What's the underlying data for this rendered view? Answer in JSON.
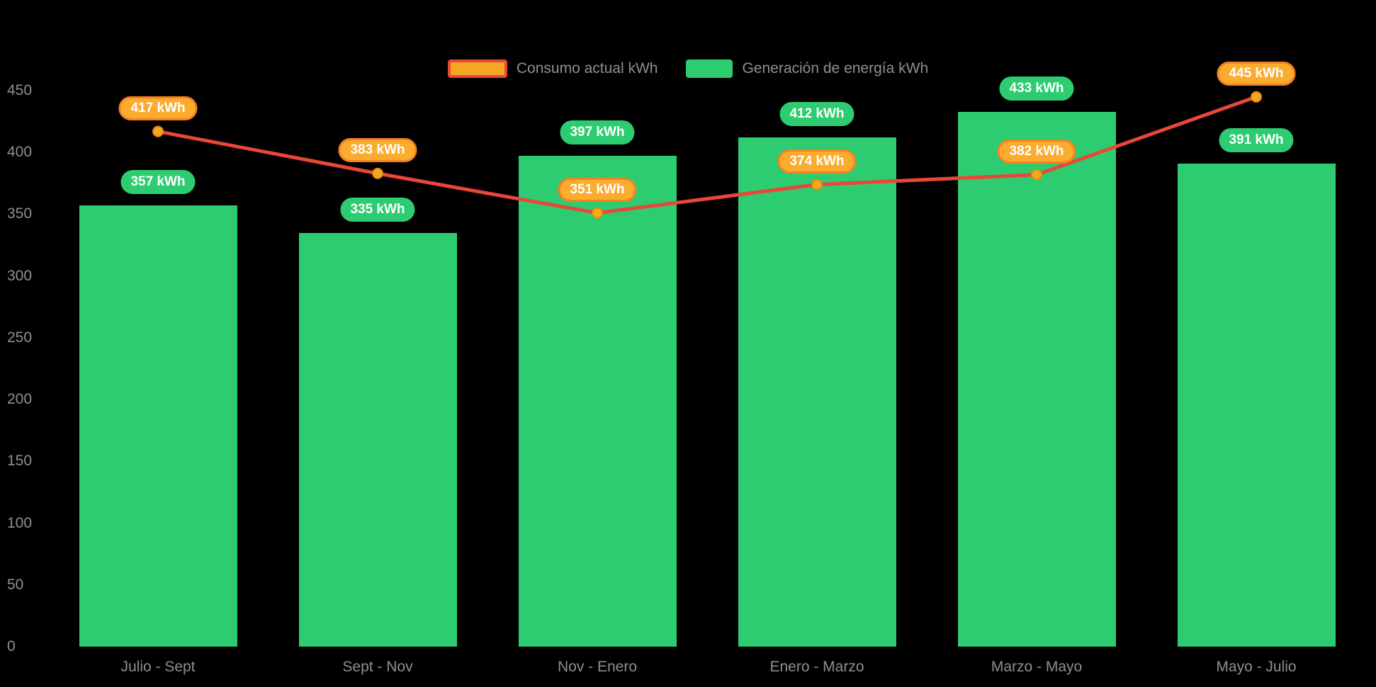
{
  "legend": {
    "items": [
      {
        "label": "Consumo actual kWh"
      },
      {
        "label": "Generación de energía kWh"
      }
    ]
  },
  "chart_data": {
    "type": "bar+line",
    "categories": [
      "Julio - Sept",
      "Sept - Nov",
      "Nov - Enero",
      "Enero - Marzo",
      "Marzo - Mayo",
      "Mayo - Julio"
    ],
    "series": [
      {
        "name": "Consumo actual kWh",
        "type": "line",
        "values": [
          417,
          383,
          351,
          374,
          382,
          445
        ],
        "value_labels": [
          "417 kWh",
          "383 kWh",
          "351 kWh",
          "374 kWh",
          "382 kWh",
          "445 kWh"
        ]
      },
      {
        "name": "Generación de energía kWh",
        "type": "bar",
        "values": [
          357,
          335,
          397,
          412,
          433,
          391
        ],
        "value_labels": [
          "357 kWh",
          "335 kWh",
          "397 kWh",
          "412 kWh",
          "433 kWh",
          "391 kWh"
        ]
      }
    ],
    "ylim": [
      0,
      450
    ],
    "yticks": [
      0,
      50,
      100,
      150,
      200,
      250,
      300,
      350,
      400,
      450
    ],
    "grid": false,
    "legend_position": "top-center"
  },
  "colors": {
    "background": "#000000",
    "bar": "#2ecc71",
    "line": "#ea4639",
    "marker": "#f5a623",
    "marker_border": "#e8890c",
    "badge_consumo_bg": "#fbab2e",
    "badge_consumo_border": "#f58220",
    "badge_text": "#ffffff",
    "axis_text": "#8f8f8f",
    "legend_text": "#8f8f8f"
  }
}
